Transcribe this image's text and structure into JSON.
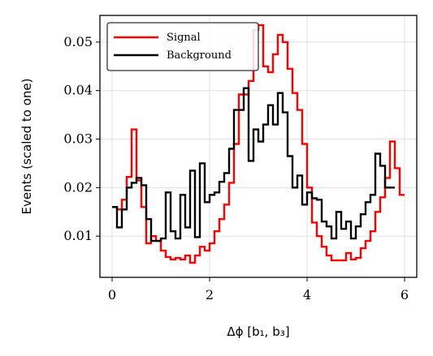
{
  "chart_data": {
    "type": "line",
    "drawstyle": "steps",
    "title": "",
    "xlabel": "Δϕ [b₁, b₃]",
    "ylabel": "Events (scaled to one)",
    "xlim": [
      -0.25,
      6.25
    ],
    "ylim": [
      0.0015,
      0.0555
    ],
    "xticks": [
      0,
      2,
      4,
      6
    ],
    "xtick_labels": [
      "0",
      "2",
      "4",
      "6"
    ],
    "yticks": [
      0.01,
      0.02,
      0.03,
      0.04,
      0.05
    ],
    "ytick_labels": [
      "0.01",
      "0.02",
      "0.03",
      "0.04",
      "0.05"
    ],
    "grid": true,
    "legend_position": "top-left",
    "x_edges": [
      0.0,
      0.1,
      0.2,
      0.3,
      0.4,
      0.5,
      0.6,
      0.7,
      0.8,
      0.9,
      1.0,
      1.1,
      1.2,
      1.3,
      1.4,
      1.5,
      1.6,
      1.7,
      1.8,
      1.9,
      2.0,
      2.1,
      2.2,
      2.3,
      2.4,
      2.5,
      2.6,
      2.7,
      2.8,
      2.9,
      3.0,
      3.1,
      3.2,
      3.3,
      3.4,
      3.5,
      3.6,
      3.7,
      3.8,
      3.9,
      4.0,
      4.1,
      4.2,
      4.3,
      4.4,
      4.5,
      4.6,
      4.7,
      4.8,
      4.9,
      5.0,
      5.1,
      5.2,
      5.3,
      5.4,
      5.5,
      5.6,
      5.7,
      5.8,
      5.9
    ],
    "series": [
      {
        "name": "Signal",
        "color": "#ff0000",
        "values": [
          0.016,
          0.0155,
          0.0175,
          0.0222,
          0.032,
          0.0215,
          0.016,
          0.0085,
          0.01,
          0.009,
          0.007,
          0.0057,
          0.0052,
          0.0055,
          0.0052,
          0.006,
          0.0045,
          0.006,
          0.0078,
          0.007,
          0.0085,
          0.011,
          0.0135,
          0.0165,
          0.021,
          0.029,
          0.0392,
          0.0392,
          0.042,
          0.0525,
          0.0535,
          0.045,
          0.0438,
          0.0475,
          0.0515,
          0.05,
          0.0445,
          0.0395,
          0.036,
          0.029,
          0.02,
          0.0128,
          0.01,
          0.0078,
          0.006,
          0.005,
          0.005,
          0.005,
          0.0065,
          0.0052,
          0.0055,
          0.0075,
          0.009,
          0.011,
          0.015,
          0.018,
          0.022,
          0.0295,
          0.024,
          0.0185
        ],
        "last_edge": 6.0
      },
      {
        "name": "Background",
        "color": "#000000",
        "values": [
          0.016,
          0.0118,
          0.0155,
          0.02,
          0.021,
          0.022,
          0.0205,
          0.0135,
          0.009,
          0.009,
          0.0095,
          0.019,
          0.011,
          0.0095,
          0.0185,
          0.0118,
          0.0235,
          0.0098,
          0.025,
          0.017,
          0.0185,
          0.019,
          0.0212,
          0.023,
          0.028,
          0.036,
          0.036,
          0.0405,
          0.0255,
          0.032,
          0.0295,
          0.033,
          0.037,
          0.033,
          0.0395,
          0.0355,
          0.0265,
          0.02,
          0.0225,
          0.0165,
          0.019,
          0.0178,
          0.0175,
          0.013,
          0.012,
          0.0095,
          0.015,
          0.0115,
          0.013,
          0.0095,
          0.012,
          0.0145,
          0.017,
          0.0185,
          0.027,
          0.0245,
          0.02
        ],
        "last_edge": 5.8
      }
    ]
  }
}
